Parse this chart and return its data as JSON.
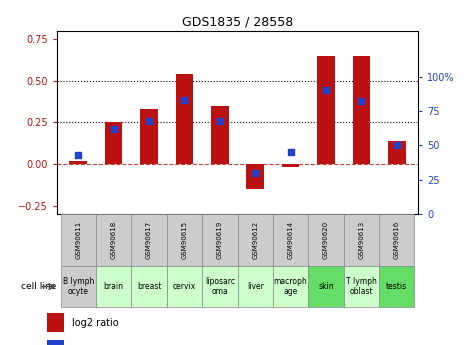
{
  "title": "GDS1835 / 28558",
  "gsm_labels": [
    "GSM90611",
    "GSM90618",
    "GSM90617",
    "GSM90615",
    "GSM90619",
    "GSM90612",
    "GSM90614",
    "GSM90620",
    "GSM90613",
    "GSM90616"
  ],
  "cell_lines": [
    "B lymph\nocyte",
    "brain",
    "breast",
    "cervix",
    "liposarc\noma",
    "liver",
    "macroph\nage",
    "skin",
    "T lymph\noblast",
    "testis"
  ],
  "cell_line_colors": [
    "#cccccc",
    "#ccffcc",
    "#ccffcc",
    "#ccffcc",
    "#ccffcc",
    "#ccffcc",
    "#ccffcc",
    "#66dd66",
    "#ccffcc",
    "#66dd66"
  ],
  "log2_ratio": [
    0.02,
    0.25,
    0.33,
    0.54,
    0.35,
    -0.15,
    -0.02,
    0.65,
    0.65,
    0.14
  ],
  "percentile_rank": [
    43,
    62,
    68,
    83,
    68,
    30,
    45,
    90,
    82,
    50
  ],
  "left_ylim": [
    -0.3,
    0.8
  ],
  "right_ylim": [
    0,
    133.33
  ],
  "yticks_left": [
    -0.25,
    0.0,
    0.25,
    0.5,
    0.75
  ],
  "yticks_right": [
    0,
    25,
    50,
    75,
    100
  ],
  "bar_color": "#bb1111",
  "dot_color": "#2244cc",
  "hline_y": 0.0,
  "dotted_lines": [
    0.25,
    0.5
  ],
  "background_color": "#ffffff"
}
